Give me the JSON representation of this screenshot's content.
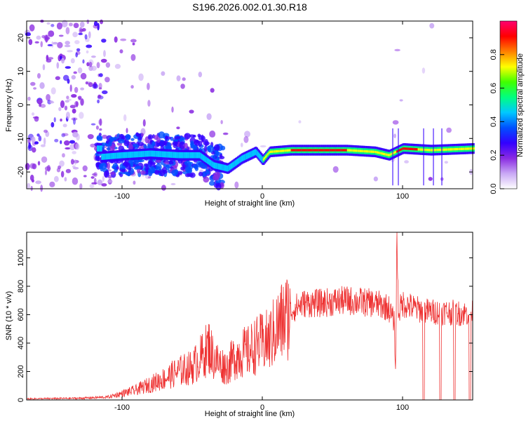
{
  "title": "S196.2026.002.01.30.R18",
  "chart_data": [
    {
      "type": "heatmap",
      "xlabel": "Height of straight line (km)",
      "ylabel": "Frequency (Hz)",
      "xlim": [
        -168,
        150
      ],
      "ylim": [
        -25,
        25
      ],
      "xticks": [
        -100,
        0,
        100
      ],
      "yticks": [
        -20,
        -10,
        0,
        10,
        20
      ],
      "grid": false,
      "ridge": [
        {
          "x": -115,
          "y": -15.5
        },
        {
          "x": -100,
          "y": -15
        },
        {
          "x": -80,
          "y": -14.5
        },
        {
          "x": -60,
          "y": -15
        },
        {
          "x": -45,
          "y": -15
        },
        {
          "x": -35,
          "y": -18
        },
        {
          "x": -25,
          "y": -19
        },
        {
          "x": -15,
          "y": -16
        },
        {
          "x": -5,
          "y": -14
        },
        {
          "x": 0,
          "y": -16.5
        },
        {
          "x": 5,
          "y": -14
        },
        {
          "x": 20,
          "y": -13.5
        },
        {
          "x": 40,
          "y": -13.5
        },
        {
          "x": 60,
          "y": -13.5
        },
        {
          "x": 80,
          "y": -14
        },
        {
          "x": 90,
          "y": -15
        },
        {
          "x": 95,
          "y": -14
        },
        {
          "x": 100,
          "y": -13
        },
        {
          "x": 120,
          "y": -13.5
        },
        {
          "x": 150,
          "y": -13
        }
      ],
      "colorbar": {
        "label": "Normalized spectral amplitude",
        "range": [
          0,
          1
        ],
        "ticks": [
          "0.0",
          "0.2",
          "0.4",
          "0.6",
          "0.8"
        ],
        "colors": [
          "#ffffff",
          "#c9a8f5",
          "#8a2be2",
          "#3300ff",
          "#0050ff",
          "#00c8ff",
          "#00ff80",
          "#40ff00",
          "#ffff00",
          "#ff8000",
          "#ff0000",
          "#ff0070"
        ]
      }
    },
    {
      "type": "line",
      "xlabel": "Height of straight line (km)",
      "ylabel": "SNR (10 * v/v)",
      "xlim": [
        -168,
        150
      ],
      "ylim": [
        0,
        1180
      ],
      "xticks": [
        -100,
        0,
        100
      ],
      "yticks": [
        0,
        200,
        400,
        600,
        800,
        1000
      ],
      "grid": false,
      "series": [
        {
          "name": "SNR",
          "color": "#ee3333",
          "x": [
            -168,
            -150,
            -130,
            -110,
            -100,
            -90,
            -80,
            -70,
            -60,
            -50,
            -42,
            -38,
            -35,
            -30,
            -25,
            -20,
            -15,
            -10,
            -5,
            0,
            5,
            10,
            15,
            20,
            25,
            30,
            40,
            50,
            60,
            70,
            80,
            90,
            94,
            95,
            96,
            97,
            100,
            110,
            120,
            130,
            140,
            150
          ],
          "values": [
            8,
            10,
            12,
            20,
            45,
            70,
            110,
            150,
            200,
            230,
            320,
            380,
            300,
            250,
            230,
            300,
            330,
            340,
            380,
            400,
            420,
            500,
            560,
            620,
            660,
            680,
            680,
            690,
            700,
            690,
            680,
            650,
            550,
            200,
            1180,
            620,
            680,
            640,
            620,
            620,
            610,
            610
          ]
        }
      ],
      "dropouts": [
        115,
        127,
        137,
        148
      ]
    }
  ]
}
